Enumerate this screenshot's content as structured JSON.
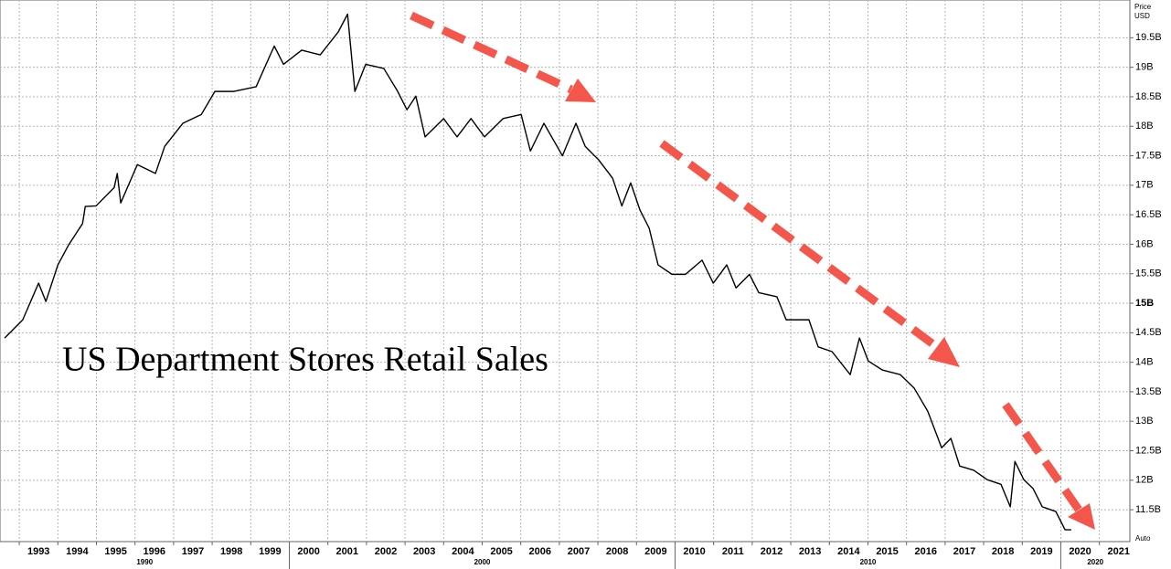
{
  "chart_data": {
    "type": "line",
    "title": "US Department Stores Retail Sales",
    "axis_title": "Price",
    "axis_unit": "USD",
    "scale_mode": "Auto",
    "grid": true,
    "x": [
      1992.62,
      1993.09,
      1993.5,
      1993.69,
      1994.0,
      1994.28,
      1994.64,
      1994.71,
      1994.99,
      1995.46,
      1995.54,
      1995.63,
      1996.06,
      1996.53,
      1996.77,
      1997.24,
      1997.72,
      1998.07,
      1998.55,
      1999.14,
      1999.61,
      1999.85,
      2000.32,
      2000.8,
      2001.27,
      2001.51,
      2001.7,
      2001.98,
      2002.45,
      2002.81,
      2003.05,
      2003.28,
      2003.52,
      2004.0,
      2004.35,
      2004.71,
      2005.06,
      2005.54,
      2006.01,
      2006.25,
      2006.6,
      2007.08,
      2007.43,
      2007.67,
      2008.02,
      2008.38,
      2008.62,
      2008.85,
      2009.09,
      2009.33,
      2009.56,
      2009.92,
      2010.27,
      2010.7,
      2010.99,
      2011.34,
      2011.58,
      2011.93,
      2012.17,
      2012.64,
      2012.88,
      2013.24,
      2013.47,
      2013.71,
      2014.07,
      2014.54,
      2014.78,
      2015.01,
      2015.37,
      2015.84,
      2016.2,
      2016.55,
      2016.91,
      2017.15,
      2017.38,
      2017.74,
      2018.09,
      2018.45,
      2018.69,
      2018.81,
      2019.04,
      2019.28,
      2019.52,
      2019.87,
      2020.11,
      2020.27
    ],
    "series": [
      {
        "name": "US Department Stores Retail Sales",
        "color": "#000000",
        "values": [
          14.41,
          14.72,
          15.34,
          15.03,
          15.65,
          15.99,
          16.35,
          16.64,
          16.65,
          16.96,
          17.2,
          16.7,
          17.35,
          17.2,
          17.66,
          18.05,
          18.2,
          18.59,
          18.59,
          18.67,
          19.36,
          19.05,
          19.29,
          19.21,
          19.6,
          19.9,
          18.59,
          19.05,
          18.98,
          18.59,
          18.28,
          18.51,
          17.82,
          18.13,
          17.82,
          18.13,
          17.82,
          18.13,
          18.2,
          17.58,
          18.05,
          17.5,
          18.05,
          17.66,
          17.43,
          17.12,
          16.65,
          17.04,
          16.58,
          16.27,
          15.65,
          15.49,
          15.49,
          15.73,
          15.34,
          15.65,
          15.26,
          15.49,
          15.18,
          15.11,
          14.72,
          14.72,
          14.72,
          14.26,
          14.18,
          13.79,
          14.41,
          14.02,
          13.87,
          13.79,
          13.56,
          13.17,
          12.55,
          12.71,
          12.24,
          12.17,
          12.01,
          11.93,
          11.55,
          12.32,
          12.01,
          11.86,
          11.55,
          11.47,
          11.16,
          11.16
        ]
      }
    ],
    "xlim": [
      1992.5,
      2021.79
    ],
    "xticks": [
      1993,
      1994,
      1995,
      1996,
      1997,
      1998,
      1999,
      2000,
      2001,
      2002,
      2003,
      2004,
      2005,
      2006,
      2007,
      2008,
      2009,
      2010,
      2011,
      2012,
      2013,
      2014,
      2015,
      2016,
      2017,
      2018,
      2019,
      2020,
      2021
    ],
    "x2ticks": [
      1990,
      2000,
      2010,
      2020
    ],
    "ylim": [
      10.96,
      20.14
    ],
    "yticks": [
      {
        "value": 11.5,
        "label": "11.5B"
      },
      {
        "value": 12,
        "label": "12B"
      },
      {
        "value": 12.5,
        "label": "12.5B"
      },
      {
        "value": 13,
        "label": "13B"
      },
      {
        "value": 13.5,
        "label": "13.5B"
      },
      {
        "value": 14,
        "label": "14B"
      },
      {
        "value": 14.5,
        "label": "14.5B"
      },
      {
        "value": 15,
        "label": "15B"
      },
      {
        "value": 15.5,
        "label": "15.5B"
      },
      {
        "value": 16,
        "label": "16B"
      },
      {
        "value": 16.5,
        "label": "16.5B"
      },
      {
        "value": 17,
        "label": "17B"
      },
      {
        "value": 17.5,
        "label": "17.5B"
      },
      {
        "value": 18,
        "label": "18B"
      },
      {
        "value": 18.5,
        "label": "18.5B"
      },
      {
        "value": 19,
        "label": "19B"
      },
      {
        "value": 19.5,
        "label": "19.5B"
      }
    ]
  }
}
